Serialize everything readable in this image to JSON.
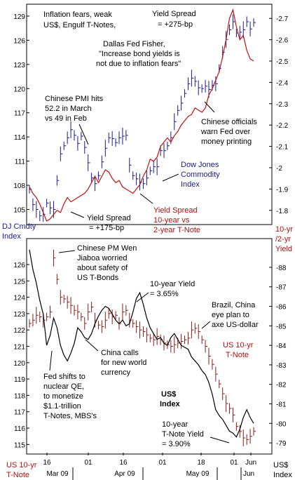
{
  "colors": {
    "commodity": "#1a1a8c",
    "spread": "#c41010",
    "tnote": "#8b1a1a",
    "usd": "#000000",
    "blue_text": "#1a1a8c",
    "red_text": "#b01010"
  },
  "chart_data": [
    {
      "type": "line",
      "panel": "top",
      "title": "Inflation fears, weak US$, Engulf T-Notes,",
      "left_axis_title": "DJ Cmdty Index",
      "right_axis_title": "10-yr /2-yr Yield",
      "left_ticks": [
        105,
        108,
        111,
        114,
        117,
        120,
        123,
        126,
        129
      ],
      "right_ticks": [
        1.8,
        1.9,
        2,
        2.1,
        2.2,
        2.3,
        2.4,
        2.5,
        2.6,
        2.7
      ],
      "ylim_left": [
        103.3,
        130.3
      ],
      "ylim_right": [
        1.74,
        2.76
      ],
      "series": [
        {
          "name": "Dow Jones Commodity Index",
          "style": "ohlc",
          "axis": "left",
          "values": [
            107.5,
            105.6,
            105.0,
            104.2,
            104.4,
            105.8,
            105.2,
            105.0,
            108.6,
            111.9,
            112.9,
            113.9,
            114.9,
            114.2,
            113.2,
            114.1,
            112.7,
            110.8,
            108.9,
            108.2,
            109.2,
            110.9,
            112.6,
            113.9,
            113.8,
            113.3,
            113.9,
            114.1,
            114.2,
            110.5,
            109.2,
            108.8,
            108.4,
            108.2,
            108.9,
            109.8,
            110.3,
            110.3,
            112.3,
            112.3,
            112.9,
            113.9,
            115.9,
            117.3,
            118.2,
            119.4,
            120.6,
            121.3,
            120.9,
            120.1,
            120.0,
            120.3,
            119.9,
            120.4,
            120.6,
            122.5,
            124.5,
            126.1,
            127.3,
            128.3,
            126.9,
            127.0,
            127.3,
            128.3,
            127.4,
            128.2
          ]
        },
        {
          "name": "Yield Spread 10-year vs 2-year T-Note",
          "style": "line",
          "axis": "right",
          "values": [
            1.91,
            1.88,
            1.86,
            1.83,
            1.79,
            1.75,
            1.76,
            1.78,
            1.8,
            1.79,
            1.83,
            1.86,
            1.84,
            1.85,
            1.86,
            1.87,
            1.88,
            1.9,
            1.93,
            1.96,
            1.93,
            1.96,
            1.99,
            1.98,
            1.95,
            1.93,
            1.94,
            1.91,
            1.9,
            1.89,
            1.88,
            1.9,
            1.92,
            1.96,
            1.99,
            2.04,
            2.03,
            2.05,
            2.1,
            2.12,
            2.14,
            2.12,
            2.15,
            2.17,
            2.2,
            2.22,
            2.24,
            2.25,
            2.28,
            2.27,
            2.26,
            2.28,
            2.34,
            2.37,
            2.41,
            2.45,
            2.52,
            2.6,
            2.7,
            2.74,
            2.66,
            2.6,
            2.62,
            2.55,
            2.51,
            2.5
          ]
        }
      ]
    },
    {
      "type": "line",
      "panel": "bottom",
      "left_axis_title": "US 10-yr T-Note",
      "right_axis_title": "US$ Index",
      "x_tick_labels": [
        "16",
        "01",
        "16",
        "01",
        "18",
        "01",
        "Jun"
      ],
      "x_month_labels": [
        "Mar 09",
        "Apr 09",
        "May 09",
        "Jun"
      ],
      "left_ticks": [
        115,
        116,
        117,
        118,
        119,
        120,
        121,
        122,
        123,
        124,
        125,
        126
      ],
      "right_ticks": [
        79,
        80,
        81,
        82,
        83,
        84,
        85,
        86,
        87,
        88
      ],
      "ylim_left": [
        114.5,
        127.5
      ],
      "ylim_right": [
        78.5,
        89.4
      ],
      "series": [
        {
          "name": "US 10-yr T-Note",
          "style": "ohlc",
          "axis": "left",
          "values": [
            122.4,
            122.6,
            122.9,
            122.8,
            122.6,
            122.8,
            123.1,
            126.4,
            125.1,
            124.0,
            123.9,
            123.7,
            123.5,
            123.2,
            123.1,
            122.8,
            122.4,
            123.1,
            123.4,
            122.6,
            122.3,
            122.2,
            122.6,
            123.0,
            122.8,
            122.9,
            122.4,
            123.1,
            123.2,
            122.6,
            122.4,
            122.2,
            122.0,
            121.9,
            121.7,
            121.5,
            121.4,
            121.6,
            121.4,
            121.2,
            121.1,
            121.0,
            121.1,
            121.2,
            121.3,
            121.4,
            121.5,
            122.0,
            122.1,
            121.9,
            121.4,
            121.0,
            120.4,
            119.9,
            119.3,
            118.7,
            118.1,
            117.5,
            117.2,
            116.8,
            116.1,
            115.8,
            115.4,
            115.3,
            115.5,
            115.8
          ]
        },
        {
          "name": "US$ Index",
          "style": "line",
          "axis": "right",
          "values": [
            88.9,
            87.9,
            87.2,
            86.3,
            85.6,
            84.0,
            84.5,
            85.4,
            84.9,
            84.0,
            83.5,
            83.2,
            83.6,
            84.1,
            84.9,
            84.7,
            84.4,
            84.3,
            84.6,
            85.1,
            85.5,
            85.8,
            86.0,
            85.9,
            85.6,
            85.3,
            85.1,
            85.3,
            85.0,
            85.1,
            85.7,
            86.4,
            86.7,
            86.1,
            85.4,
            84.9,
            84.6,
            84.3,
            84.4,
            84.1,
            84.0,
            84.4,
            84.6,
            84.3,
            84.0,
            83.9,
            83.8,
            83.4,
            83.2,
            83.0,
            82.7,
            82.5,
            82.1,
            81.5,
            80.7,
            80.4,
            80.2,
            79.9,
            79.6,
            79.5,
            79.3,
            79.7,
            80.3,
            80.7,
            80.3,
            80.0
          ]
        }
      ]
    }
  ],
  "annotations": {
    "top_title_line1": "Inflation fears, weak",
    "top_title_line2": "US$, Engulf T-Notes,",
    "yield_spread_top_l1": "Yield Spread",
    "yield_spread_top_l2": "= +275-bp",
    "dallas_l1": "Dallas Fed Fisher,",
    "dallas_l2": "\"Increase bond yields is",
    "dallas_l3": "not due to inflation fears\"",
    "pmi_l1": "Chinese PMI hits",
    "pmi_l2": "52.2 in March",
    "pmi_l3": "vs 49 in Feb",
    "officials_l1": "Chinese officials",
    "officials_l2": "warn Fed over",
    "officials_l3": "money printing",
    "djci_l1": "Dow Jones",
    "djci_l2": "Commodity",
    "djci_l3": "Index",
    "spread_mid_l1": "Yield Spread",
    "spread_mid_l2": "10-year vs",
    "spread_mid_l3": "2-year T-Note",
    "spread_low_l1": "Yield Spread",
    "spread_low_l2": "= +175-bp",
    "cmdty_axis_l1": "DJ Cmdty",
    "cmdty_axis_l2": "Index",
    "ryield_l1": "10-yr",
    "ryield_l2": "/2-yr",
    "ryield_l3": "Yield",
    "wen_l1": "Chinese PM Wen",
    "wen_l2": "Jiaboa worried",
    "wen_l3": "about safety of",
    "wen_l4": "US T-Bonds",
    "tenyr_top_l1": "10-year Yield",
    "tenyr_top_l2": "= 3.65%",
    "brazil_l1": "Brazil, China",
    "brazil_l2": "eye plan to",
    "brazil_l3": "axe US-dollar",
    "tnote_right_l1": "US 10-yr",
    "tnote_right_l2": "T-Note",
    "china_calls_l1": "China calls",
    "china_calls_l2": "for new world",
    "china_calls_l3": "currency",
    "fed_l1": "Fed shifts to",
    "fed_l2": "nuclear QE,",
    "fed_l3": "to monetize",
    "fed_l4": "$1.1-trillion",
    "fed_l5": "T-Notes, MBS's",
    "usd_l1": "US$",
    "usd_l2": "Index",
    "tenyr_bot_l1": "10-year",
    "tenyr_bot_l2": "T-Note Yield",
    "tenyr_bot_l3": "= 3.90%",
    "bot_left_l1": "US 10-yr",
    "bot_left_l2": "T-Note",
    "bot_right_l1": "US$",
    "bot_right_l2": "Index"
  }
}
